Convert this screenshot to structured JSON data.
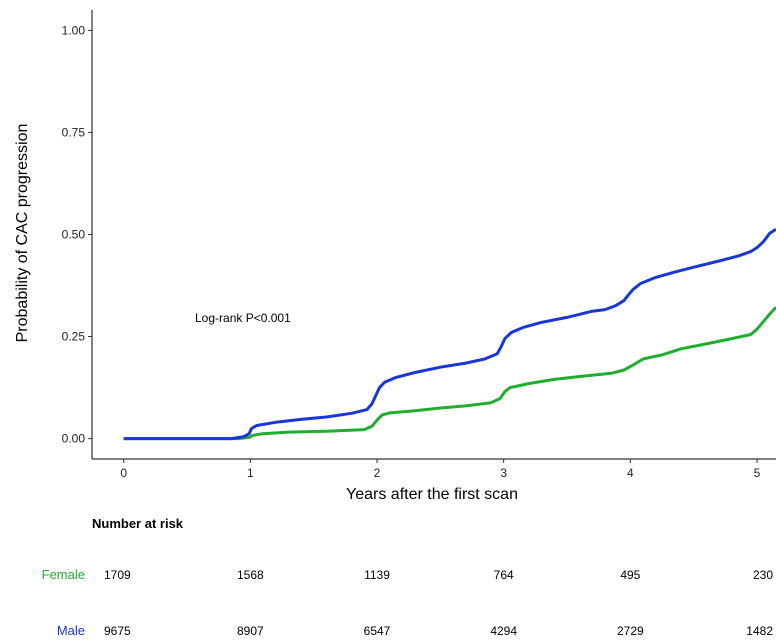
{
  "chart_data": {
    "type": "line",
    "title": "",
    "xlabel": "Years after the first scan",
    "ylabel": "Probability of CAC progression",
    "xlim": [
      -0.25,
      5.15
    ],
    "ylim": [
      -0.05,
      1.05
    ],
    "x_ticks": [
      "0",
      "1",
      "2",
      "3",
      "4",
      "5"
    ],
    "y_ticks": [
      "0.00",
      "0.25",
      "0.50",
      "0.75",
      "1.00"
    ],
    "grid": false,
    "annotation": "Log-rank P<0.001",
    "colors": {
      "Female": "#1fae2e",
      "Male": "#1837d6"
    },
    "series": [
      {
        "name": "Male",
        "points": [
          [
            0,
            0
          ],
          [
            0.85,
            0
          ],
          [
            0.95,
            0.005
          ],
          [
            0.99,
            0.012
          ],
          [
            1.01,
            0.025
          ],
          [
            1.05,
            0.032
          ],
          [
            1.2,
            0.04
          ],
          [
            1.4,
            0.047
          ],
          [
            1.6,
            0.053
          ],
          [
            1.8,
            0.062
          ],
          [
            1.92,
            0.071
          ],
          [
            1.96,
            0.085
          ],
          [
            1.99,
            0.105
          ],
          [
            2.02,
            0.125
          ],
          [
            2.06,
            0.138
          ],
          [
            2.15,
            0.15
          ],
          [
            2.3,
            0.162
          ],
          [
            2.5,
            0.175
          ],
          [
            2.7,
            0.185
          ],
          [
            2.85,
            0.195
          ],
          [
            2.95,
            0.208
          ],
          [
            2.98,
            0.225
          ],
          [
            3.01,
            0.245
          ],
          [
            3.06,
            0.26
          ],
          [
            3.15,
            0.272
          ],
          [
            3.3,
            0.285
          ],
          [
            3.5,
            0.297
          ],
          [
            3.7,
            0.312
          ],
          [
            3.8,
            0.316
          ],
          [
            3.88,
            0.325
          ],
          [
            3.95,
            0.338
          ],
          [
            3.98,
            0.35
          ],
          [
            4.02,
            0.365
          ],
          [
            4.08,
            0.38
          ],
          [
            4.2,
            0.395
          ],
          [
            4.35,
            0.408
          ],
          [
            4.5,
            0.42
          ],
          [
            4.7,
            0.435
          ],
          [
            4.85,
            0.447
          ],
          [
            4.95,
            0.458
          ],
          [
            5.0,
            0.468
          ],
          [
            5.05,
            0.482
          ],
          [
            5.1,
            0.503
          ],
          [
            5.15,
            0.513
          ]
        ]
      },
      {
        "name": "Female",
        "points": [
          [
            0,
            0
          ],
          [
            0.9,
            0
          ],
          [
            0.99,
            0.003
          ],
          [
            1.02,
            0.008
          ],
          [
            1.1,
            0.012
          ],
          [
            1.3,
            0.016
          ],
          [
            1.6,
            0.018
          ],
          [
            1.9,
            0.022
          ],
          [
            1.96,
            0.03
          ],
          [
            2.0,
            0.045
          ],
          [
            2.04,
            0.058
          ],
          [
            2.1,
            0.063
          ],
          [
            2.3,
            0.068
          ],
          [
            2.5,
            0.075
          ],
          [
            2.7,
            0.08
          ],
          [
            2.9,
            0.088
          ],
          [
            2.97,
            0.098
          ],
          [
            3.01,
            0.115
          ],
          [
            3.05,
            0.125
          ],
          [
            3.2,
            0.135
          ],
          [
            3.4,
            0.145
          ],
          [
            3.6,
            0.152
          ],
          [
            3.85,
            0.16
          ],
          [
            3.95,
            0.168
          ],
          [
            4.02,
            0.18
          ],
          [
            4.1,
            0.195
          ],
          [
            4.25,
            0.205
          ],
          [
            4.4,
            0.22
          ],
          [
            4.6,
            0.232
          ],
          [
            4.8,
            0.245
          ],
          [
            4.95,
            0.255
          ],
          [
            5.0,
            0.268
          ],
          [
            5.06,
            0.29
          ],
          [
            5.1,
            0.305
          ],
          [
            5.15,
            0.322
          ]
        ]
      }
    ]
  },
  "risk_table": {
    "title": "Number at risk",
    "rows": [
      {
        "label": "Female",
        "color": "#1fae2e",
        "values": [
          "1709",
          "1568",
          "1139",
          "764",
          "495",
          "230"
        ]
      },
      {
        "label": "Male",
        "color": "#1837d6",
        "values": [
          "9675",
          "8907",
          "6547",
          "4294",
          "2729",
          "1482"
        ]
      }
    ]
  }
}
